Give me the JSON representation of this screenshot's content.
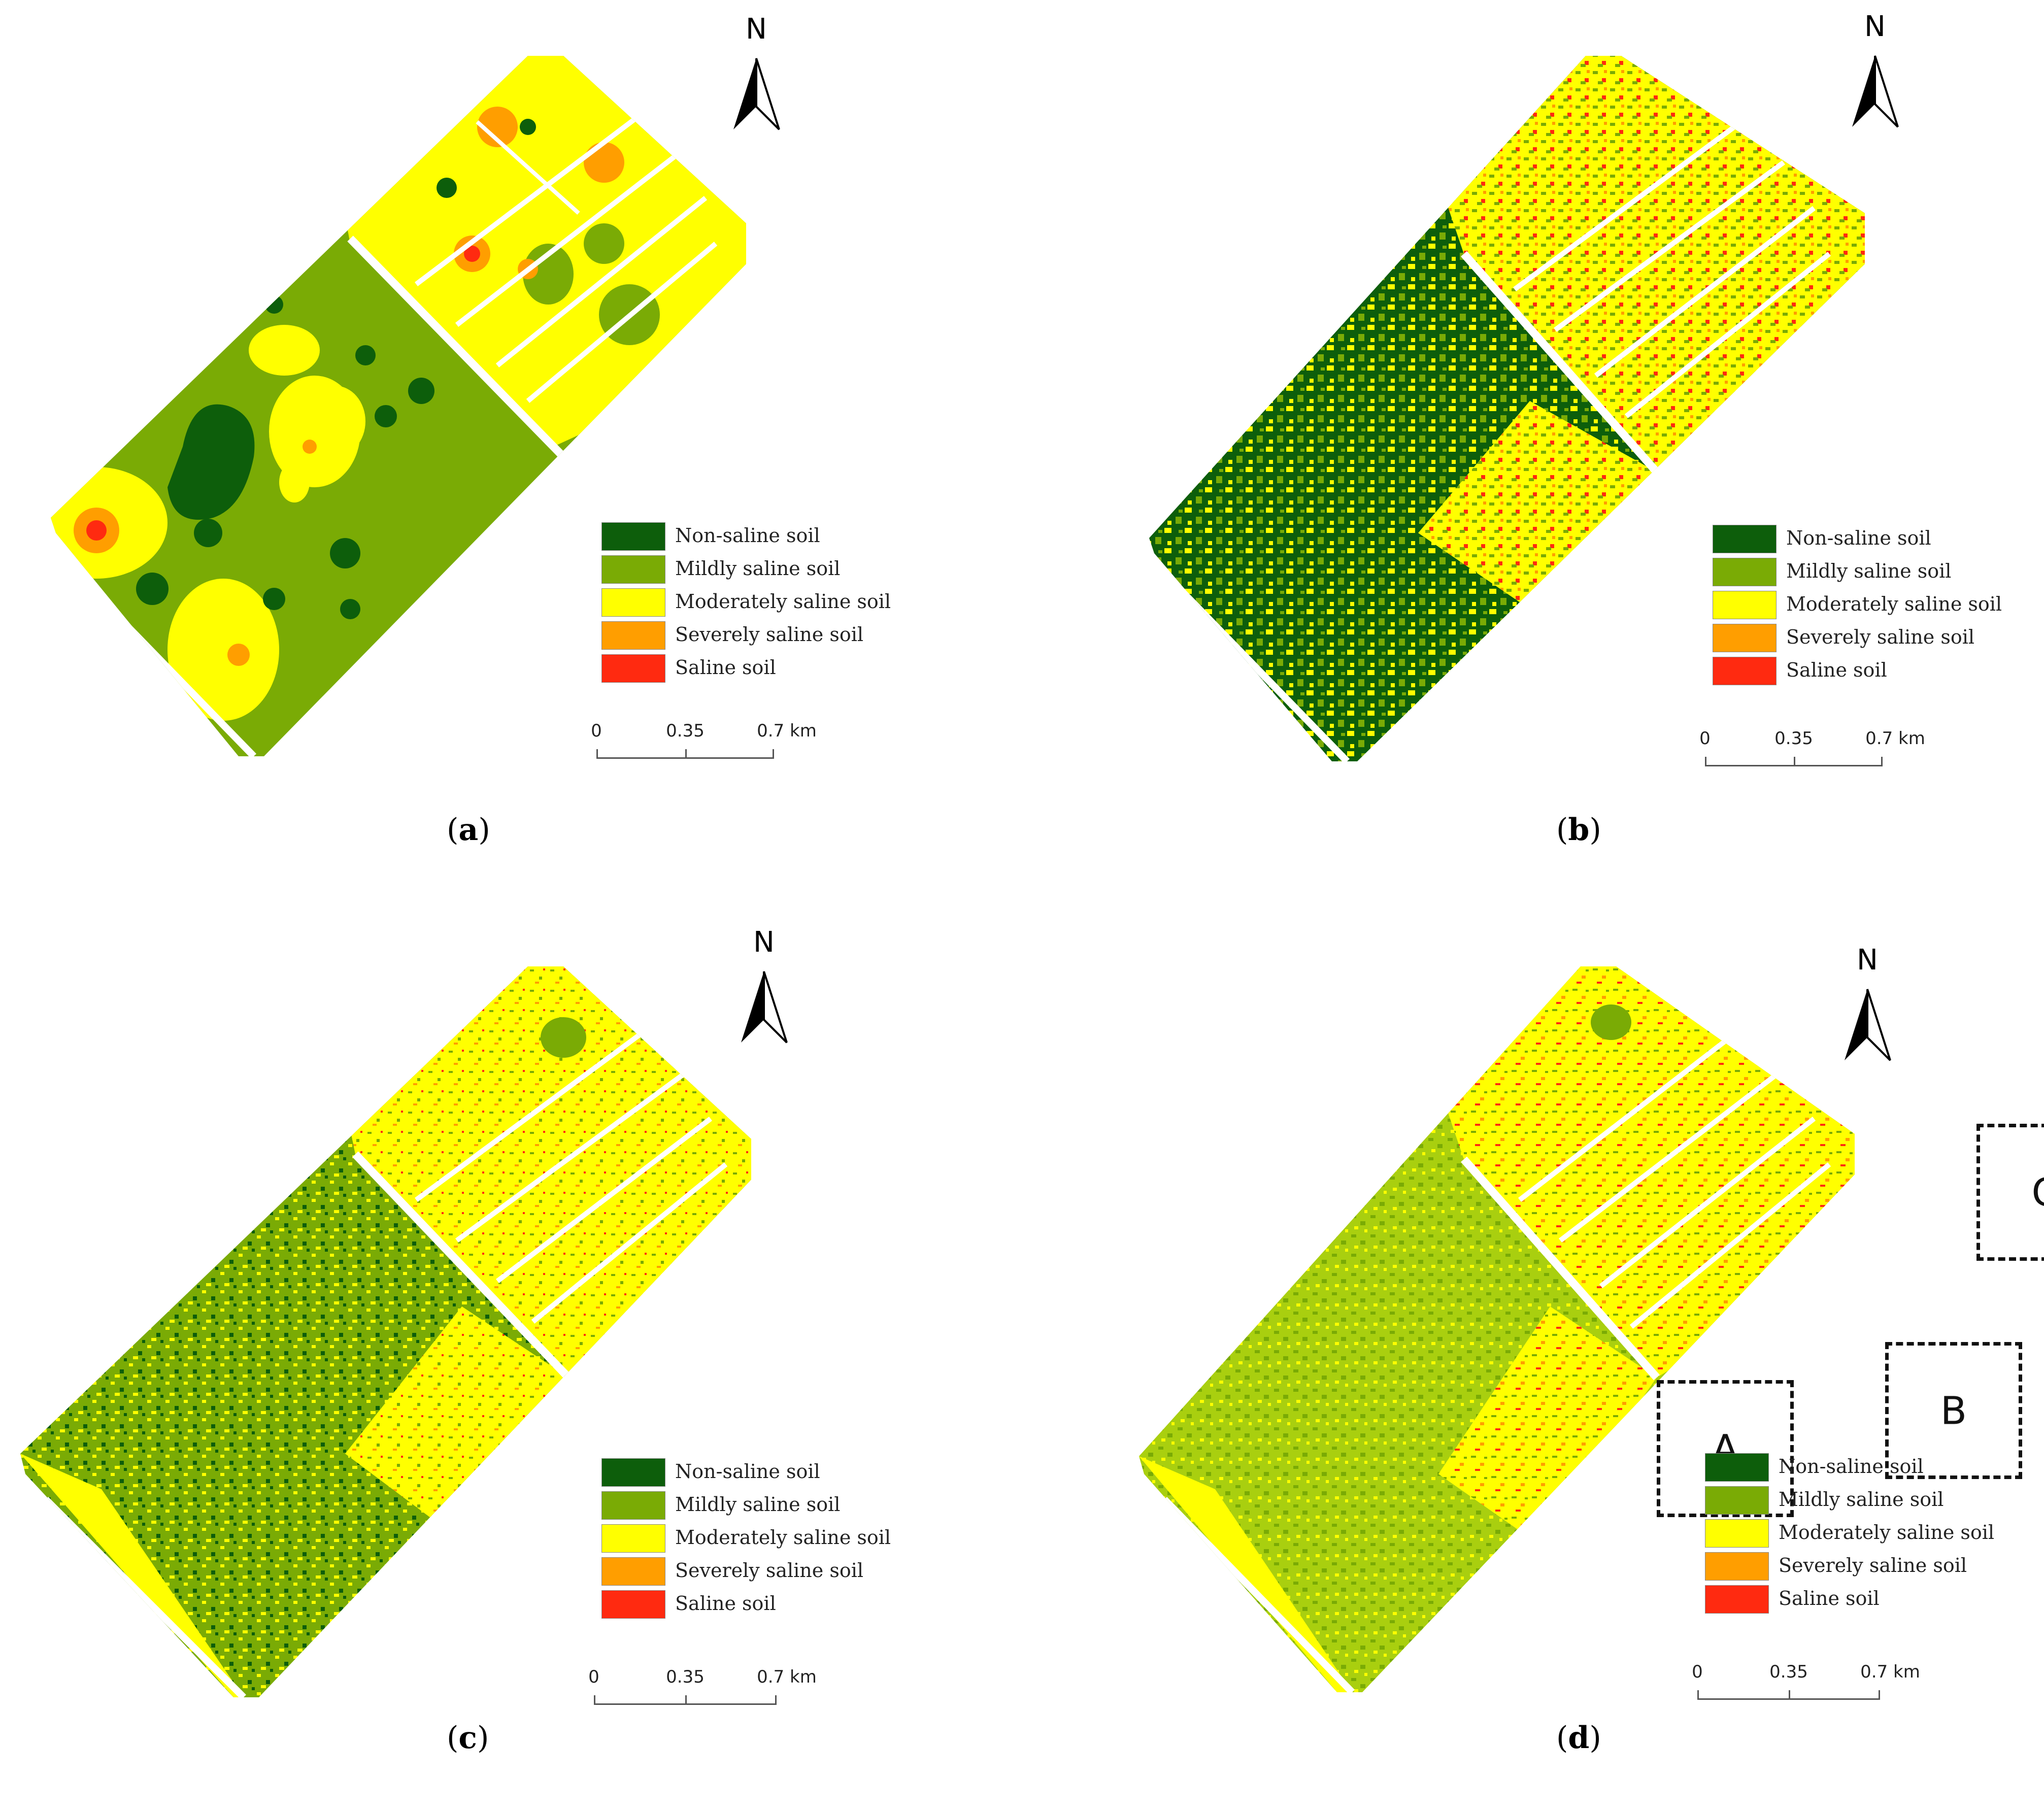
{
  "colors": {
    "non_saline": "#0d5e0b",
    "mild": "#7aab05",
    "moderate": "#ffff00",
    "severe": "#ff9e00",
    "saline": "#ff2a10",
    "mild_light": "#a9cf0f",
    "background": "#ffffff"
  },
  "north_letter": "N",
  "legend": [
    {
      "label": "Non-saline soil",
      "color": "#0d5e0b"
    },
    {
      "label": "Mildly saline soil",
      "color": "#7aab05"
    },
    {
      "label": "Moderately saline soil",
      "color": "#ffff00"
    },
    {
      "label": "Severely saline soil",
      "color": "#ff9e00"
    },
    {
      "label": "Saline soil",
      "color": "#ff2a10"
    }
  ],
  "scale": {
    "t0": "0",
    "t1": "0.35",
    "t2": "0.7 km"
  },
  "panels": [
    {
      "letter": "a",
      "dominant_south": "mildly saline",
      "dominant_north": "moderately saline"
    },
    {
      "letter": "b",
      "dominant_south": "non-saline",
      "dominant_north": "moderately saline"
    },
    {
      "letter": "c",
      "dominant_south": "mildly saline",
      "dominant_north": "moderately saline"
    },
    {
      "letter": "d",
      "dominant_south": "mildly saline",
      "dominant_north": "moderately saline"
    }
  ],
  "zones": [
    {
      "label": "A"
    },
    {
      "label": "B"
    },
    {
      "label": "C"
    }
  ]
}
